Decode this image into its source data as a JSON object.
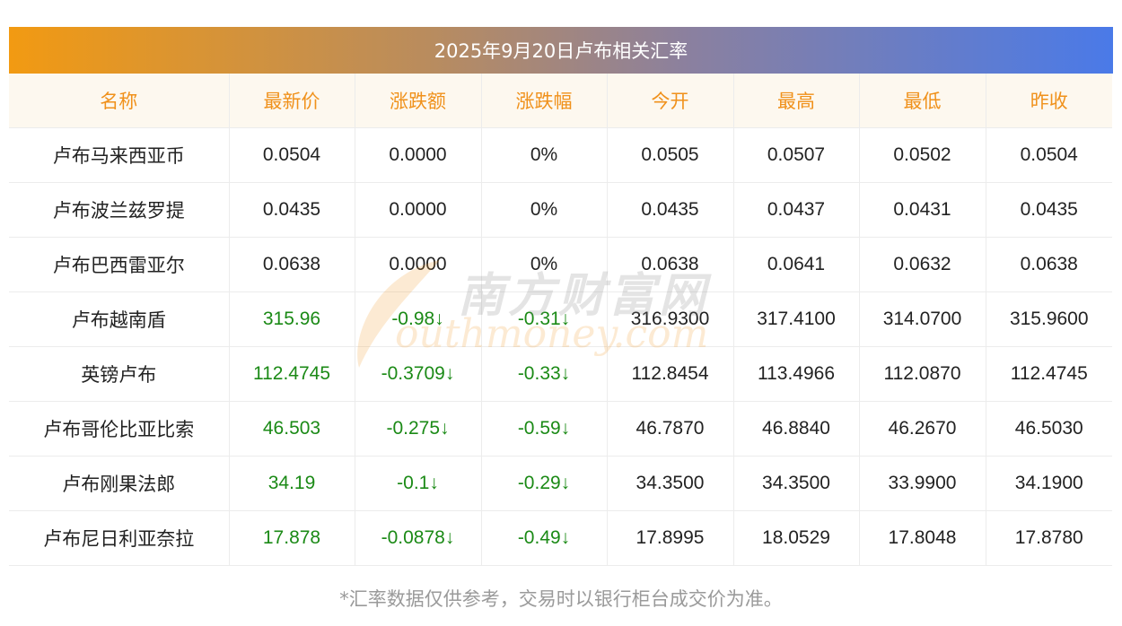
{
  "title": "2025年9月20日卢布相关汇率",
  "watermark": {
    "cn": "南方财富网",
    "en": "outhmoney.com"
  },
  "columns": [
    "名称",
    "最新价",
    "涨跌额",
    "涨跌幅",
    "今开",
    "最高",
    "最低",
    "昨收"
  ],
  "rows": [
    {
      "name": "卢布马来西亚币",
      "latest": "0.0504",
      "change": "0.0000",
      "pct": "0%",
      "open": "0.0505",
      "high": "0.0507",
      "low": "0.0502",
      "prev": "0.0504",
      "down": false
    },
    {
      "name": "卢布波兰兹罗提",
      "latest": "0.0435",
      "change": "0.0000",
      "pct": "0%",
      "open": "0.0435",
      "high": "0.0437",
      "low": "0.0431",
      "prev": "0.0435",
      "down": false
    },
    {
      "name": "卢布巴西雷亚尔",
      "latest": "0.0638",
      "change": "0.0000",
      "pct": "0%",
      "open": "0.0638",
      "high": "0.0641",
      "low": "0.0632",
      "prev": "0.0638",
      "down": false
    },
    {
      "name": "卢布越南盾",
      "latest": "315.96",
      "change": "-0.98↓",
      "pct": "-0.31↓",
      "open": "316.9300",
      "high": "317.4100",
      "low": "314.0700",
      "prev": "315.9600",
      "down": true
    },
    {
      "name": "英镑卢布",
      "latest": "112.4745",
      "change": "-0.3709↓",
      "pct": "-0.33↓",
      "open": "112.8454",
      "high": "113.4966",
      "low": "112.0870",
      "prev": "112.4745",
      "down": true
    },
    {
      "name": "卢布哥伦比亚比索",
      "latest": "46.503",
      "change": "-0.275↓",
      "pct": "-0.59↓",
      "open": "46.7870",
      "high": "46.8840",
      "low": "46.2670",
      "prev": "46.5030",
      "down": true
    },
    {
      "name": "卢布刚果法郎",
      "latest": "34.19",
      "change": "-0.1↓",
      "pct": "-0.29↓",
      "open": "34.3500",
      "high": "34.3500",
      "low": "33.9900",
      "prev": "34.1900",
      "down": true
    },
    {
      "name": "卢布尼日利亚奈拉",
      "latest": "17.878",
      "change": "-0.0878↓",
      "pct": "-0.49↓",
      "open": "17.8995",
      "high": "18.0529",
      "low": "17.8048",
      "prev": "17.8780",
      "down": true
    }
  ],
  "footnote": "*汇率数据仅供参考，交易时以银行柜台成交价为准。",
  "colors": {
    "header_text": "#f0911b",
    "down": "#1b8a16",
    "header_bg": "#fdf8ef"
  }
}
